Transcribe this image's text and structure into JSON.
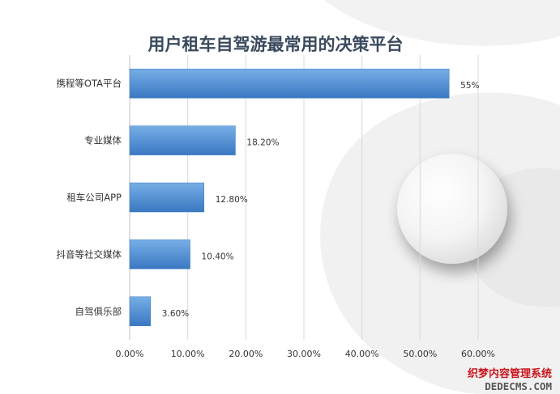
{
  "chart_data": {
    "type": "bar",
    "orientation": "horizontal",
    "title": "用户租车自驾游最常用的决策平台",
    "categories": [
      "携程等OTA平台",
      "专业媒体",
      "租车公司APP",
      "抖音等社交媒体",
      "自驾俱乐部"
    ],
    "values": [
      55.0,
      18.2,
      12.8,
      10.4,
      3.6
    ],
    "value_labels": [
      "55%",
      "18.20%",
      "12.80%",
      "10.40%",
      "3.60%"
    ],
    "unit": "%",
    "xlim": [
      0,
      60
    ],
    "x_ticks": [
      0,
      10,
      20,
      30,
      40,
      50,
      60
    ],
    "x_tick_labels": [
      "0.00%",
      "10.00%",
      "20.00%",
      "30.00%",
      "40.00%",
      "50.00%",
      "60.00%"
    ],
    "grid": true,
    "bar_color": "#4a8ad4",
    "bar_color_light": "#77aee6",
    "bar_color_dark": "#3a78c2"
  },
  "watermark": {
    "line1": "织梦内容管理系统",
    "line2": "DEDECMS.COM"
  },
  "colors": {
    "title": "#3a4a5e",
    "gridline": "#d9d9d9",
    "background_shape": "#f1f1f1"
  }
}
